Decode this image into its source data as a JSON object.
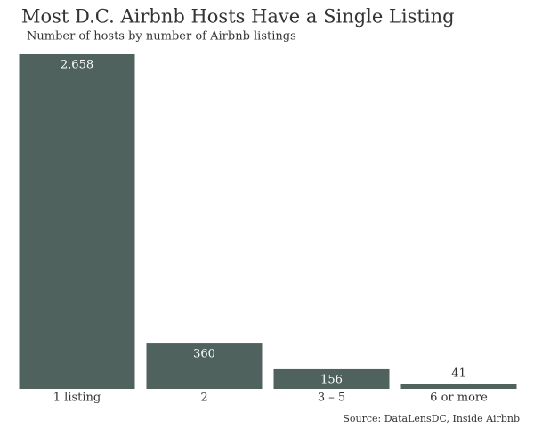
{
  "chart_data": {
    "type": "bar",
    "title": "Most D.C. Airbnb Hosts Have a Single Listing",
    "subtitle": "Number of hosts by number of Airbnb listings",
    "source": "Source: DataLensDC, Inside Airbnb",
    "categories": [
      "1 listing",
      "2",
      "3 – 5",
      "6 or more"
    ],
    "values": [
      2658,
      360,
      156,
      41
    ],
    "value_labels": [
      "2,658",
      "360",
      "156",
      "41"
    ],
    "color": "#4f625e"
  }
}
